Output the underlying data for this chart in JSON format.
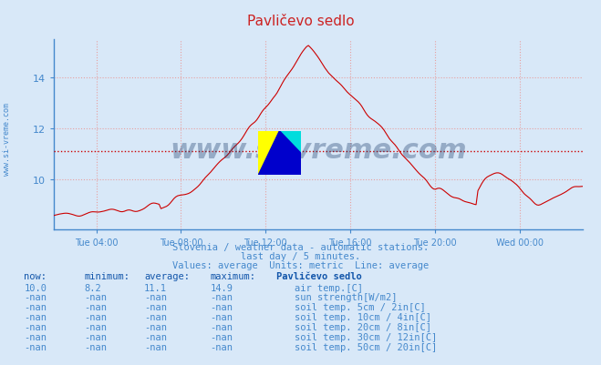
{
  "title": "Pavličevo sedlo",
  "background_color": "#d8e8f8",
  "plot_bg_color": "#d8e8f8",
  "line_color": "#cc0000",
  "avg_line_color": "#cc0000",
  "avg_line_style": "dotted",
  "avg_value": 11.1,
  "grid_color": "#e8a0a0",
  "axis_color": "#4488cc",
  "tick_color": "#4488cc",
  "text_color": "#4488cc",
  "ylabel_text": "",
  "xlabel_text": "",
  "yticks": [
    10,
    12,
    14
  ],
  "ylim": [
    8.0,
    15.5
  ],
  "xlim_hours": [
    2,
    27
  ],
  "subtitle1": "Slovenia / weather data - automatic stations.",
  "subtitle2": "last day / 5 minutes.",
  "subtitle3": "Values: average  Units: metric  Line: average",
  "watermark": "www.si-vreme.com",
  "logo_colors": [
    "#ffff00",
    "#00ccff",
    "#0000cc"
  ],
  "xtick_labels": [
    "Tue 04:00",
    "Tue 08:00",
    "Tue 12:00",
    "Tue 16:00",
    "Tue 20:00",
    "Wed 00:00"
  ],
  "xtick_positions": [
    4,
    8,
    12,
    16,
    20,
    24
  ],
  "table_header": [
    "now:",
    "minimum:",
    "average:",
    "maximum:",
    "Pavličevo sedlo"
  ],
  "table_rows": [
    [
      "10.0",
      "8.2",
      "11.1",
      "14.9",
      "#cc0000",
      "air temp.[C]"
    ],
    [
      "-nan",
      "-nan",
      "-nan",
      "-nan",
      "#aaaa00",
      "sun strength[W/m2]"
    ],
    [
      "-nan",
      "-nan",
      "-nan",
      "-nan",
      "#ddaaaa",
      "soil temp. 5cm / 2in[C]"
    ],
    [
      "-nan",
      "-nan",
      "-nan",
      "-nan",
      "#cc8833",
      "soil temp. 10cm / 4in[C]"
    ],
    [
      "-nan",
      "-nan",
      "-nan",
      "-nan",
      "#bb7722",
      "soil temp. 20cm / 8in[C]"
    ],
    [
      "-nan",
      "-nan",
      "-nan",
      "-nan",
      "#887744",
      "soil temp. 30cm / 12in[C]"
    ],
    [
      "-nan",
      "-nan",
      "-nan",
      "-nan",
      "#884422",
      "soil temp. 50cm / 20in[C]"
    ]
  ],
  "side_label": "www.si-vreme.com"
}
